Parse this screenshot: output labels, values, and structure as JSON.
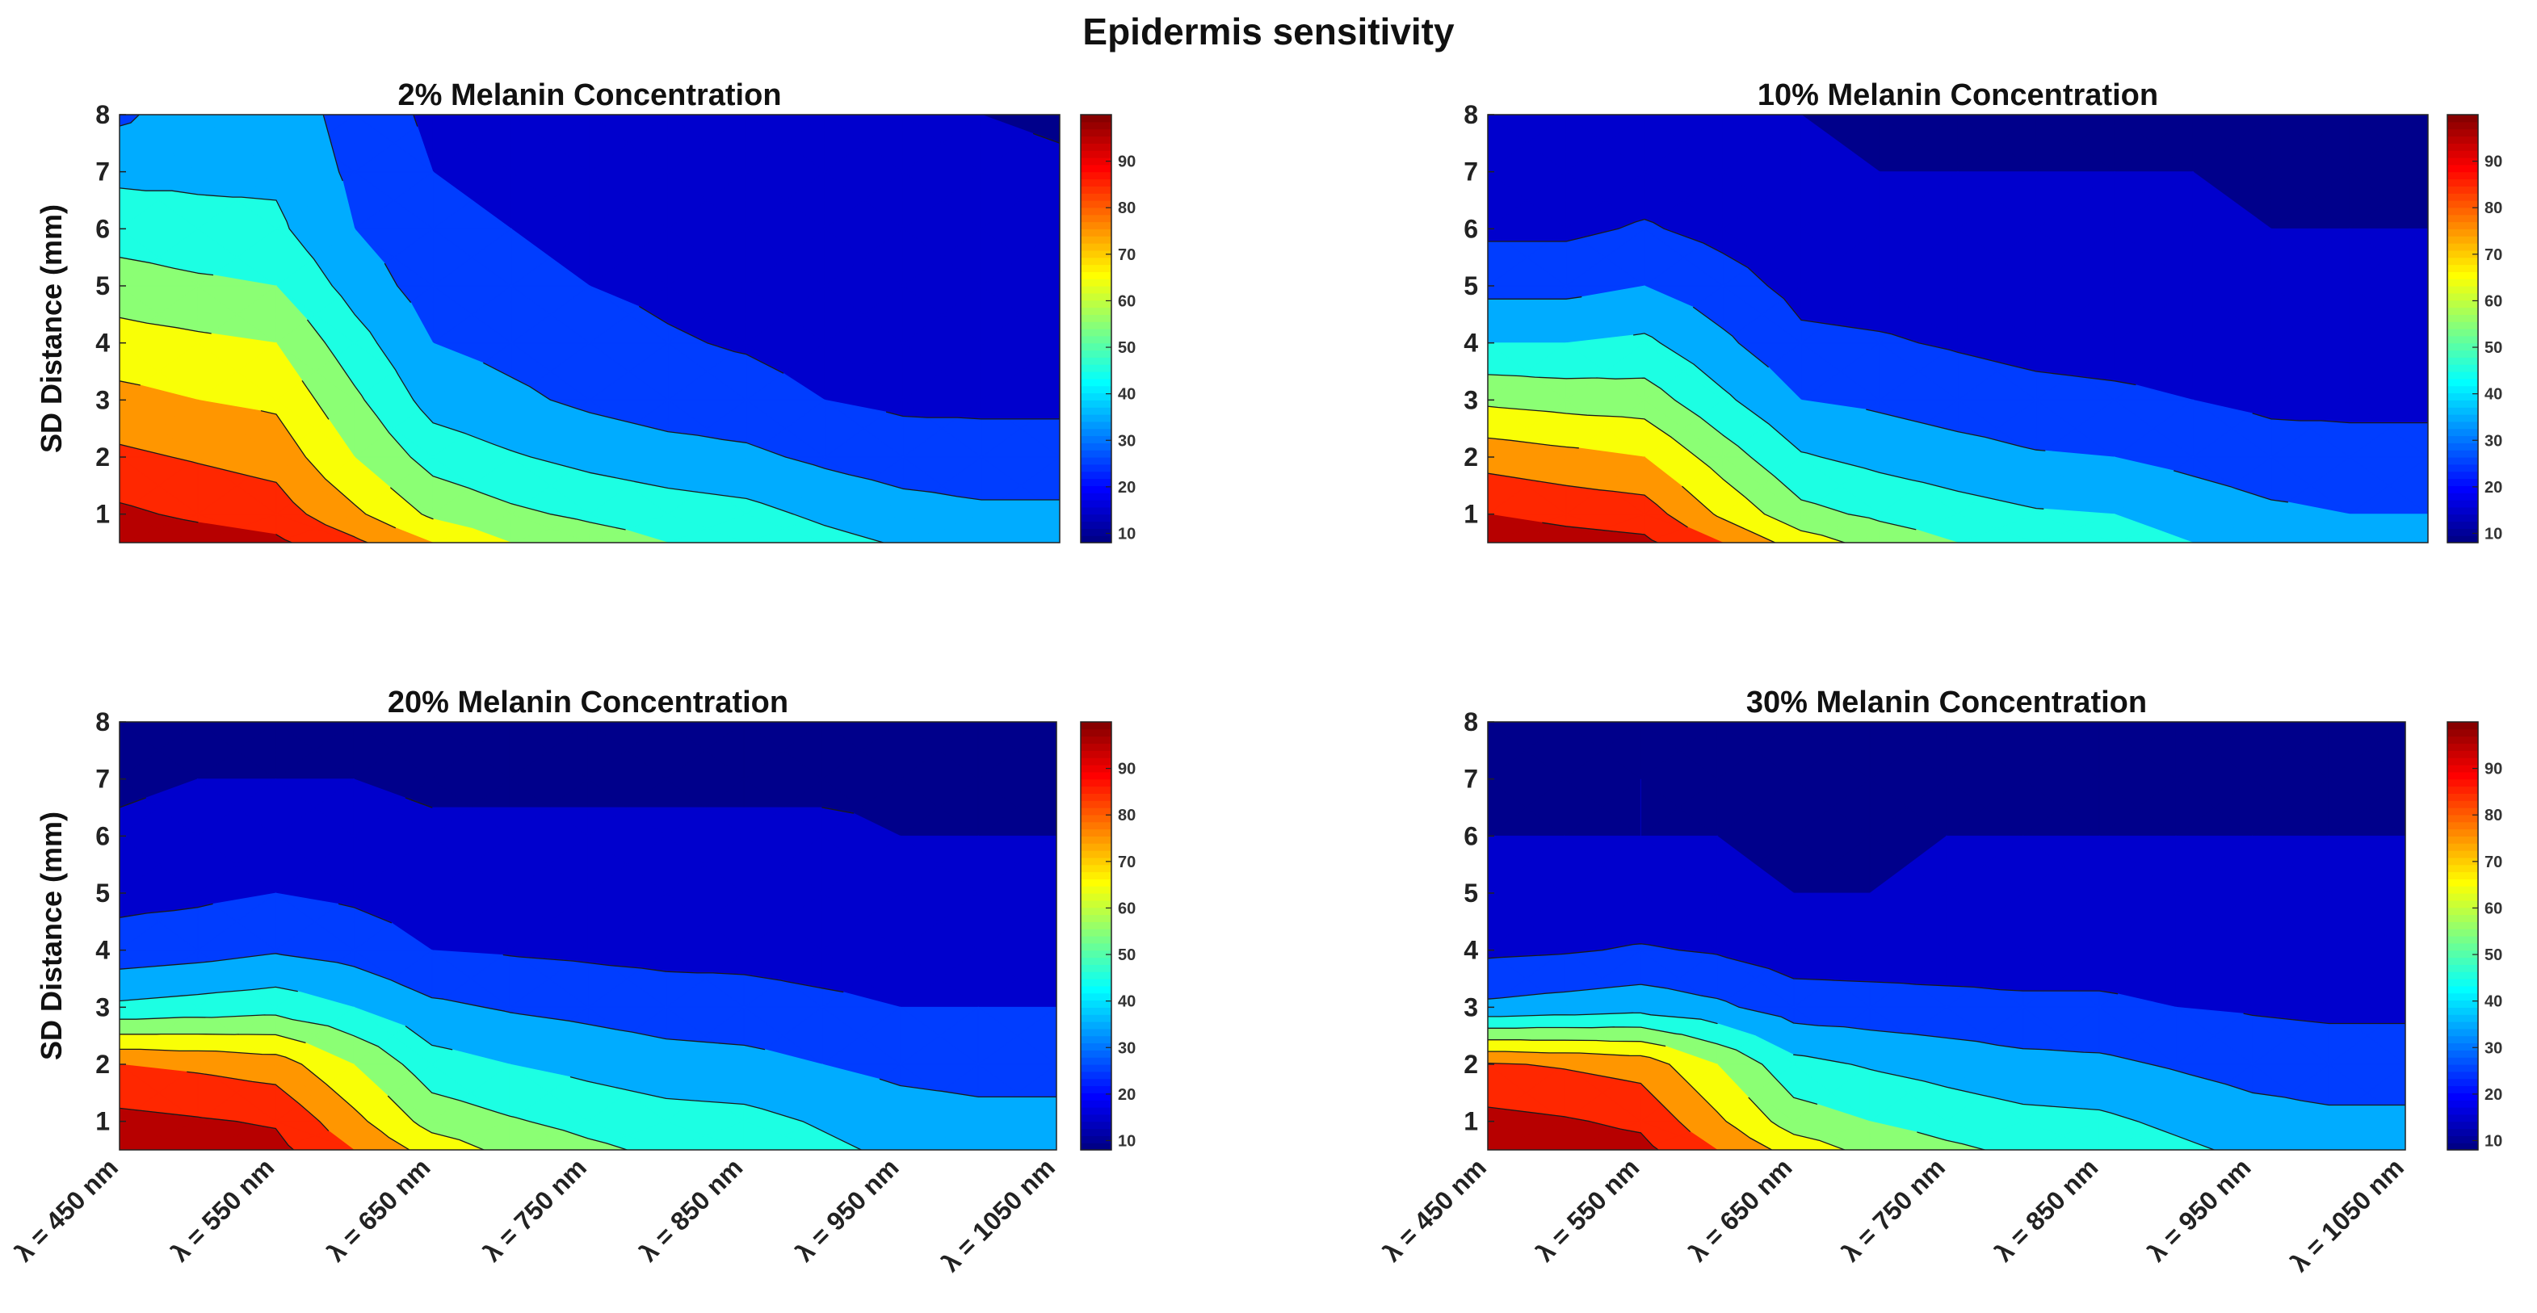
{
  "figure": {
    "title": "Epidermis sensitivity"
  },
  "chart_data": [
    {
      "type": "heatmap",
      "title": "2% Melanin Concentration",
      "xlabel": "",
      "ylabel": "SD Distance (mm)",
      "x_ticks": [
        "λ = 450 nm",
        "λ = 550 nm",
        "λ = 650 nm",
        "λ = 750 nm",
        "λ = 850 nm",
        "λ = 950 nm",
        "λ = 1050 nm"
      ],
      "x_values": [
        450,
        500,
        550,
        600,
        650,
        700,
        750,
        800,
        850,
        900,
        950,
        1000,
        1050
      ],
      "y_values": [
        0.5,
        1,
        2,
        3,
        4,
        5,
        6,
        7,
        8
      ],
      "y_ticks": [
        1,
        2,
        3,
        4,
        5,
        6,
        7,
        8
      ],
      "ylim": [
        0.5,
        8
      ],
      "colorbar": {
        "min": 8,
        "max": 100,
        "ticks": [
          10,
          20,
          30,
          40,
          50,
          60,
          70,
          80,
          90
        ]
      },
      "z": [
        [
          98,
          95,
          92,
          82,
          70,
          60,
          55,
          50,
          48,
          43,
          39,
          37,
          35
        ],
        [
          92,
          88,
          85,
          72,
          58,
          52,
          48,
          45,
          43,
          38,
          34,
          32,
          32
        ],
        [
          82,
          79,
          76,
          60,
          46,
          41,
          37,
          34,
          32,
          28,
          25,
          24,
          24
        ],
        [
          73,
          70,
          68,
          52,
          36,
          32,
          28,
          25,
          24,
          20,
          18,
          18,
          18
        ],
        [
          64,
          62,
          60,
          44,
          30,
          27,
          24,
          21,
          19,
          16,
          14,
          15,
          16
        ],
        [
          55,
          52,
          50,
          36,
          25,
          22,
          20,
          18,
          16,
          14,
          13,
          14,
          14
        ],
        [
          45,
          43,
          42,
          30,
          22,
          20,
          18,
          16,
          15,
          13,
          12,
          13,
          12
        ],
        [
          38,
          38,
          38,
          28,
          20,
          18,
          15,
          14,
          14,
          12,
          11,
          12,
          11
        ],
        [
          28,
          36,
          36,
          26,
          18,
          16,
          13,
          12,
          12,
          11,
          10,
          10,
          9
        ]
      ]
    },
    {
      "type": "heatmap",
      "title": "10% Melanin Concentration",
      "xlabel": "",
      "ylabel": "",
      "x_ticks": [
        "λ = 450 nm",
        "λ = 550 nm",
        "λ = 650 nm",
        "λ = 750 nm",
        "λ = 850 nm",
        "λ = 950 nm",
        "λ = 1050 nm"
      ],
      "x_values": [
        450,
        500,
        550,
        600,
        650,
        700,
        750,
        800,
        850,
        900,
        950,
        1000,
        1050
      ],
      "y_values": [
        0.5,
        1,
        2,
        3,
        4,
        5,
        6,
        7,
        8
      ],
      "y_ticks": [
        1,
        2,
        3,
        4,
        5,
        6,
        7,
        8
      ],
      "ylim": [
        0.5,
        8
      ],
      "colorbar": {
        "min": 8,
        "max": 100,
        "ticks": [
          10,
          20,
          30,
          40,
          50,
          60,
          70,
          80,
          90
        ]
      },
      "z": [
        [
          97,
          94,
          92,
          80,
          65,
          56,
          50,
          46,
          44,
          40,
          36,
          34,
          33
        ],
        [
          90,
          87,
          85,
          68,
          53,
          48,
          44,
          41,
          40,
          36,
          32,
          30,
          30
        ],
        [
          76,
          73,
          70,
          55,
          41,
          37,
          34,
          31,
          30,
          27,
          24,
          23,
          23
        ],
        [
          58,
          56,
          55,
          42,
          30,
          28,
          25,
          23,
          22,
          20,
          18,
          18,
          18
        ],
        [
          40,
          40,
          42,
          32,
          22,
          21,
          19,
          17,
          16,
          15,
          14,
          14,
          14
        ],
        [
          27,
          27,
          30,
          24,
          17,
          16,
          15,
          14,
          13,
          12,
          12,
          11,
          11
        ],
        [
          18,
          18,
          21,
          17,
          13,
          13,
          12,
          12,
          12,
          11,
          10,
          10,
          10
        ],
        [
          12,
          13,
          15,
          13,
          11,
          10,
          10,
          10,
          10,
          10,
          9,
          9,
          9
        ],
        [
          10,
          11,
          13,
          11,
          10,
          9,
          9,
          9,
          9,
          9,
          9,
          9,
          8
        ]
      ]
    },
    {
      "type": "heatmap",
      "title": "20% Melanin Concentration",
      "xlabel": "",
      "ylabel": "SD Distance (mm)",
      "x_ticks": [
        "λ = 450 nm",
        "λ = 550 nm",
        "λ = 650 nm",
        "λ = 750 nm",
        "λ = 850 nm",
        "λ = 950 nm",
        "λ = 1050 nm"
      ],
      "x_values": [
        450,
        500,
        550,
        600,
        650,
        700,
        750,
        800,
        850,
        900,
        950,
        1000,
        1050
      ],
      "y_values": [
        0.5,
        1,
        2,
        3,
        4,
        5,
        6,
        7,
        8
      ],
      "y_ticks": [
        1,
        2,
        3,
        4,
        5,
        6,
        7,
        8
      ],
      "ylim": [
        0.5,
        8
      ],
      "colorbar": {
        "min": 8,
        "max": 100,
        "ticks": [
          10,
          20,
          30,
          40,
          50,
          60,
          70,
          80,
          90
        ]
      },
      "z": [
        [
          97,
          95,
          93,
          80,
          66,
          57,
          52,
          48,
          46,
          42,
          38,
          36,
          35
        ],
        [
          93,
          91,
          89,
          73,
          56,
          51,
          47,
          44,
          43,
          39,
          35,
          33,
          33
        ],
        [
          80,
          78,
          75,
          60,
          44,
          40,
          37,
          34,
          33,
          30,
          27,
          26,
          26
        ],
        [
          42,
          44,
          46,
          40,
          32,
          29,
          27,
          25,
          24,
          22,
          20,
          20,
          20
        ],
        [
          24,
          26,
          29,
          26,
          20,
          19,
          18,
          17,
          17,
          16,
          15,
          14,
          14
        ],
        [
          17,
          18,
          20,
          18,
          15,
          15,
          15,
          15,
          15,
          14,
          13,
          12,
          11
        ],
        [
          11,
          12,
          13,
          12,
          11,
          11,
          11,
          11,
          11,
          11,
          10,
          10,
          10
        ],
        [
          9,
          10,
          10,
          10,
          9,
          9,
          9,
          9,
          9,
          9,
          9,
          9,
          9
        ],
        [
          9,
          9,
          9,
          9,
          9,
          9,
          9,
          9,
          9,
          9,
          9,
          9,
          8
        ]
      ]
    },
    {
      "type": "heatmap",
      "title": "30% Melanin Concentration",
      "xlabel": "",
      "ylabel": "",
      "x_ticks": [
        "λ = 450 nm",
        "λ = 550 nm",
        "λ = 650 nm",
        "λ = 750 nm",
        "λ = 850 nm",
        "λ = 950 nm",
        "λ = 1050 nm"
      ],
      "x_values": [
        450,
        500,
        550,
        600,
        650,
        700,
        750,
        800,
        850,
        900,
        950,
        1000,
        1050
      ],
      "y_values": [
        0.5,
        1,
        2,
        3,
        4,
        5,
        6,
        7,
        8
      ],
      "y_ticks": [
        1,
        2,
        3,
        4,
        5,
        6,
        7,
        8
      ],
      "ylim": [
        0.5,
        8
      ],
      "colorbar": {
        "min": 8,
        "max": 100,
        "ticks": [
          10,
          20,
          30,
          40,
          50,
          60,
          70,
          80,
          90
        ]
      },
      "z": [
        [
          97,
          95,
          93,
          80,
          66,
          57,
          52,
          48,
          46,
          42,
          38,
          36,
          35
        ],
        [
          93,
          91,
          88,
          72,
          55,
          50,
          46,
          43,
          42,
          38,
          34,
          32,
          32
        ],
        [
          81,
          79,
          76,
          60,
          43,
          39,
          36,
          33,
          32,
          29,
          26,
          25,
          25
        ],
        [
          32,
          34,
          36,
          32,
          25,
          24,
          23,
          22,
          22,
          20,
          19,
          18,
          18
        ],
        [
          18,
          19,
          21,
          19,
          15,
          15,
          15,
          15,
          15,
          14,
          14,
          13,
          13
        ],
        [
          11,
          12,
          12,
          11,
          10,
          10,
          11,
          11,
          11,
          11,
          11,
          11,
          10
        ],
        [
          10,
          10,
          10,
          10,
          9,
          9,
          10,
          10,
          10,
          10,
          10,
          10,
          10
        ],
        [
          9,
          9,
          10,
          9,
          8.5,
          9,
          9,
          9,
          9,
          9,
          9,
          9,
          9
        ],
        [
          8.5,
          9,
          9.5,
          8.5,
          7.5,
          8,
          9,
          9,
          9,
          9,
          9,
          9,
          9
        ]
      ]
    }
  ]
}
